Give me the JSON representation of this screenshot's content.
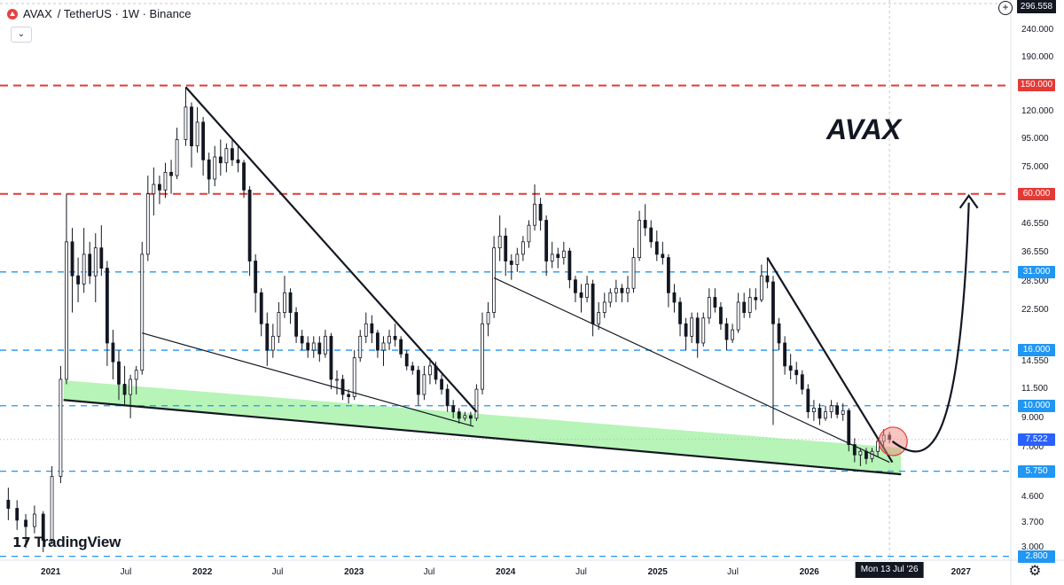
{
  "header": {
    "symbol": "AVAX",
    "pair": "/ TetherUS · 1W · Binance",
    "collapse_icon": "chevron-down-icon"
  },
  "brand": {
    "name": "TradingView",
    "logo_icon": "tradingview-logo-icon"
  },
  "annotation_text": "AVAX",
  "top_price_label": "296.558",
  "chart_data": {
    "type": "candlestick",
    "title": "",
    "xlabel": "",
    "ylabel": "",
    "scale": "log",
    "ylim": [
      2.75,
      300
    ],
    "xlim": [
      "2020-09-01",
      "2027-05-01"
    ],
    "y_ticks": [
      "240.000",
      "190.000",
      "120.000",
      "95.000",
      "75.000",
      "46.550",
      "36.550",
      "28.500",
      "22.500",
      "14.550",
      "11.500",
      "9.000",
      "7.000",
      "4.600",
      "3.700",
      "3.000"
    ],
    "x_ticks": [
      {
        "label": "2021",
        "date": "2021-01-01",
        "bold": true
      },
      {
        "label": "Jul",
        "date": "2021-07-01",
        "bold": false
      },
      {
        "label": "2022",
        "date": "2022-01-01",
        "bold": true
      },
      {
        "label": "Jul",
        "date": "2022-07-01",
        "bold": false
      },
      {
        "label": "2023",
        "date": "2023-01-01",
        "bold": true
      },
      {
        "label": "Jul",
        "date": "2023-07-01",
        "bold": false
      },
      {
        "label": "2024",
        "date": "2024-01-01",
        "bold": true
      },
      {
        "label": "Jul",
        "date": "2024-07-01",
        "bold": false
      },
      {
        "label": "2025",
        "date": "2025-01-01",
        "bold": true
      },
      {
        "label": "Jul",
        "date": "2025-07-01",
        "bold": false
      },
      {
        "label": "2026",
        "date": "2026-01-01",
        "bold": true
      },
      {
        "label": "2027",
        "date": "2027-01-01",
        "bold": true
      }
    ],
    "crosshair_date_label": "Mon 13 Jul '26",
    "crosshair_date": "2026-07-13",
    "price_levels": [
      {
        "label": "150.000",
        "value": 150,
        "style": "red-dashed",
        "color": "#e53935"
      },
      {
        "label": "60.000",
        "value": 60,
        "style": "red-dashed",
        "color": "#e53935"
      },
      {
        "label": "31.000",
        "value": 31,
        "style": "blue-dashed",
        "color": "#2196f3"
      },
      {
        "label": "16.000",
        "value": 16,
        "style": "blue-dashed",
        "color": "#2196f3"
      },
      {
        "label": "10.000",
        "value": 10,
        "style": "blue-dashed",
        "color": "#2196f3"
      },
      {
        "label": "5.750",
        "value": 5.75,
        "style": "blue-dashed",
        "color": "#2196f3"
      },
      {
        "label": "2.800",
        "value": 2.8,
        "style": "blue-dashed",
        "color": "#2196f3"
      }
    ],
    "current_price": {
      "label": "7.522",
      "value": 7.522,
      "color": "#2962ff"
    },
    "candles": [
      [
        "2020-09-21",
        4.5,
        5.0,
        3.8,
        4.2
      ],
      [
        "2020-10-12",
        4.2,
        4.5,
        3.5,
        3.8
      ],
      [
        "2020-11-02",
        3.8,
        4.0,
        3.0,
        3.6
      ],
      [
        "2020-11-23",
        3.6,
        4.3,
        3.4,
        4.0
      ],
      [
        "2020-12-14",
        4.0,
        4.1,
        2.9,
        3.2
      ],
      [
        "2021-01-04",
        3.2,
        6.0,
        3.1,
        5.5
      ],
      [
        "2021-01-25",
        5.5,
        14.0,
        5.2,
        12.5
      ],
      [
        "2021-02-08",
        12.5,
        60.0,
        12.0,
        40.0
      ],
      [
        "2021-02-22",
        40.0,
        45.0,
        22.0,
        30.0
      ],
      [
        "2021-03-08",
        30.0,
        35.0,
        24.0,
        28.0
      ],
      [
        "2021-03-22",
        28.0,
        45.0,
        26.0,
        36.0
      ],
      [
        "2021-04-05",
        36.0,
        40.0,
        28.0,
        30.0
      ],
      [
        "2021-04-19",
        30.0,
        43.0,
        24.0,
        38.0
      ],
      [
        "2021-05-03",
        38.0,
        46.0,
        30.0,
        32.0
      ],
      [
        "2021-05-17",
        32.0,
        34.0,
        14.0,
        17.0
      ],
      [
        "2021-05-31",
        17.0,
        19.0,
        12.5,
        14.5
      ],
      [
        "2021-06-14",
        14.5,
        16.0,
        10.5,
        12.0
      ],
      [
        "2021-06-28",
        12.0,
        14.0,
        10.0,
        11.0
      ],
      [
        "2021-07-12",
        11.0,
        13.0,
        9.0,
        12.5
      ],
      [
        "2021-07-26",
        12.5,
        14.0,
        11.0,
        13.5
      ],
      [
        "2021-08-09",
        13.5,
        40.0,
        13.0,
        36.0
      ],
      [
        "2021-08-23",
        36.0,
        70.0,
        34.0,
        60.0
      ],
      [
        "2021-09-06",
        60.0,
        75.0,
        50.0,
        65.0
      ],
      [
        "2021-09-20",
        65.0,
        70.0,
        55.0,
        62.0
      ],
      [
        "2021-10-04",
        62.0,
        78.0,
        58.0,
        72.0
      ],
      [
        "2021-10-18",
        72.0,
        80.0,
        60.0,
        70.0
      ],
      [
        "2021-11-01",
        70.0,
        105.0,
        68.0,
        95.0
      ],
      [
        "2021-11-22",
        95.0,
        148.0,
        90.0,
        125.0
      ],
      [
        "2021-12-06",
        125.0,
        130.0,
        75.0,
        90.0
      ],
      [
        "2021-12-20",
        90.0,
        125.0,
        85.0,
        110.0
      ],
      [
        "2022-01-03",
        110.0,
        115.0,
        70.0,
        80.0
      ],
      [
        "2022-01-17",
        80.0,
        85.0,
        60.0,
        68.0
      ],
      [
        "2022-01-31",
        68.0,
        90.0,
        64.0,
        82.0
      ],
      [
        "2022-02-14",
        82.0,
        95.0,
        70.0,
        78.0
      ],
      [
        "2022-02-28",
        78.0,
        92.0,
        72.0,
        88.0
      ],
      [
        "2022-03-14",
        88.0,
        96.0,
        76.0,
        80.0
      ],
      [
        "2022-03-28",
        80.0,
        90.0,
        72.0,
        78.0
      ],
      [
        "2022-04-11",
        78.0,
        80.0,
        58.0,
        62.0
      ],
      [
        "2022-04-25",
        62.0,
        64.0,
        30.0,
        34.0
      ],
      [
        "2022-05-09",
        34.0,
        36.0,
        22.0,
        26.0
      ],
      [
        "2022-05-23",
        26.0,
        27.0,
        18.0,
        20.0
      ],
      [
        "2022-06-06",
        20.0,
        22.0,
        14.0,
        16.0
      ],
      [
        "2022-06-20",
        16.0,
        20.0,
        15.0,
        18.0
      ],
      [
        "2022-07-04",
        18.0,
        24.0,
        17.0,
        22.0
      ],
      [
        "2022-07-18",
        22.0,
        30.0,
        21.0,
        26.0
      ],
      [
        "2022-08-01",
        26.0,
        27.0,
        20.0,
        22.0
      ],
      [
        "2022-08-15",
        22.0,
        23.0,
        17.0,
        18.0
      ],
      [
        "2022-08-29",
        18.0,
        19.0,
        16.0,
        17.0
      ],
      [
        "2022-09-12",
        17.0,
        18.0,
        15.0,
        16.0
      ],
      [
        "2022-09-26",
        16.0,
        18.0,
        15.0,
        17.0
      ],
      [
        "2022-10-10",
        17.0,
        18.0,
        14.5,
        15.5
      ],
      [
        "2022-10-24",
        15.5,
        19.0,
        15.0,
        18.0
      ],
      [
        "2022-11-07",
        18.0,
        18.5,
        11.5,
        12.5
      ],
      [
        "2022-11-21",
        12.5,
        13.5,
        11.0,
        12.5
      ],
      [
        "2022-12-05",
        12.5,
        13.0,
        10.5,
        11.0
      ],
      [
        "2022-12-19",
        11.0,
        11.5,
        10.2,
        10.8
      ],
      [
        "2023-01-02",
        10.8,
        16.0,
        10.5,
        15.0
      ],
      [
        "2023-01-16",
        15.0,
        19.0,
        14.5,
        18.0
      ],
      [
        "2023-01-30",
        18.0,
        22.0,
        17.0,
        20.0
      ],
      [
        "2023-02-13",
        20.0,
        21.5,
        17.0,
        18.5
      ],
      [
        "2023-02-27",
        18.5,
        19.0,
        15.0,
        16.0
      ],
      [
        "2023-03-13",
        16.0,
        18.0,
        14.0,
        17.0
      ],
      [
        "2023-03-27",
        17.0,
        19.0,
        16.0,
        18.0
      ],
      [
        "2023-04-10",
        18.0,
        20.0,
        16.5,
        17.5
      ],
      [
        "2023-04-24",
        17.5,
        18.0,
        15.0,
        15.5
      ],
      [
        "2023-05-08",
        15.5,
        16.0,
        13.5,
        14.0
      ],
      [
        "2023-05-22",
        14.0,
        14.5,
        13.0,
        13.5
      ],
      [
        "2023-06-05",
        13.5,
        14.0,
        10.0,
        11.0
      ],
      [
        "2023-06-19",
        11.0,
        14.0,
        10.5,
        13.0
      ],
      [
        "2023-07-03",
        13.0,
        15.0,
        12.0,
        14.0
      ],
      [
        "2023-07-17",
        14.0,
        14.5,
        12.0,
        12.5
      ],
      [
        "2023-07-31",
        12.5,
        13.0,
        11.0,
        11.5
      ],
      [
        "2023-08-14",
        11.5,
        12.0,
        9.5,
        10.0
      ],
      [
        "2023-08-28",
        10.0,
        10.5,
        9.0,
        9.5
      ],
      [
        "2023-09-11",
        9.5,
        9.8,
        8.6,
        9.0
      ],
      [
        "2023-09-25",
        9.0,
        9.5,
        8.8,
        9.2
      ],
      [
        "2023-10-09",
        9.2,
        9.5,
        8.5,
        9.0
      ],
      [
        "2023-10-23",
        9.0,
        12.0,
        8.8,
        11.5
      ],
      [
        "2023-11-06",
        11.5,
        22.0,
        11.0,
        20.0
      ],
      [
        "2023-11-20",
        20.0,
        24.0,
        18.0,
        22.0
      ],
      [
        "2023-12-04",
        22.0,
        42.0,
        21.0,
        38.0
      ],
      [
        "2023-12-18",
        38.0,
        50.0,
        34.0,
        42.0
      ],
      [
        "2024-01-01",
        42.0,
        45.0,
        30.0,
        34.0
      ],
      [
        "2024-01-15",
        34.0,
        36.0,
        29.0,
        33.0
      ],
      [
        "2024-01-29",
        33.0,
        38.0,
        31.0,
        36.0
      ],
      [
        "2024-02-12",
        36.0,
        42.0,
        34.0,
        40.0
      ],
      [
        "2024-02-26",
        40.0,
        48.0,
        38.0,
        46.0
      ],
      [
        "2024-03-11",
        46.0,
        65.0,
        44.0,
        55.0
      ],
      [
        "2024-03-25",
        55.0,
        58.0,
        44.0,
        48.0
      ],
      [
        "2024-04-08",
        48.0,
        50.0,
        30.0,
        34.0
      ],
      [
        "2024-04-22",
        34.0,
        40.0,
        32.0,
        36.0
      ],
      [
        "2024-05-06",
        36.0,
        38.0,
        32.0,
        35.0
      ],
      [
        "2024-05-20",
        35.0,
        40.0,
        33.0,
        37.0
      ],
      [
        "2024-06-03",
        37.0,
        38.0,
        27.0,
        29.0
      ],
      [
        "2024-06-17",
        29.0,
        30.0,
        24.0,
        26.0
      ],
      [
        "2024-07-01",
        26.0,
        28.0,
        22.0,
        25.0
      ],
      [
        "2024-07-15",
        25.0,
        30.0,
        24.0,
        28.0
      ],
      [
        "2024-07-29",
        28.0,
        29.0,
        18.0,
        20.0
      ],
      [
        "2024-08-12",
        20.0,
        24.0,
        19.0,
        22.0
      ],
      [
        "2024-08-26",
        22.0,
        26.0,
        21.0,
        24.0
      ],
      [
        "2024-09-09",
        24.0,
        27.0,
        23.0,
        26.0
      ],
      [
        "2024-09-23",
        26.0,
        29.0,
        24.0,
        27.0
      ],
      [
        "2024-10-07",
        27.0,
        28.0,
        24.0,
        26.0
      ],
      [
        "2024-10-21",
        26.0,
        30.0,
        24.0,
        27.0
      ],
      [
        "2024-11-04",
        27.0,
        38.0,
        26.0,
        35.0
      ],
      [
        "2024-11-18",
        35.0,
        52.0,
        34.0,
        48.0
      ],
      [
        "2024-12-02",
        48.0,
        55.0,
        42.0,
        45.0
      ],
      [
        "2024-12-16",
        45.0,
        48.0,
        38.0,
        40.0
      ],
      [
        "2024-12-30",
        40.0,
        44.0,
        34.0,
        36.0
      ],
      [
        "2025-01-13",
        36.0,
        40.0,
        33.0,
        35.0
      ],
      [
        "2025-01-27",
        35.0,
        36.0,
        23.0,
        26.0
      ],
      [
        "2025-02-10",
        26.0,
        28.0,
        22.0,
        24.0
      ],
      [
        "2025-02-24",
        24.0,
        25.0,
        18.0,
        20.0
      ],
      [
        "2025-03-10",
        20.0,
        21.0,
        16.0,
        18.0
      ],
      [
        "2025-03-24",
        18.0,
        22.0,
        17.0,
        21.0
      ],
      [
        "2025-04-07",
        21.0,
        22.0,
        15.0,
        17.0
      ],
      [
        "2025-04-21",
        17.0,
        22.0,
        16.5,
        21.0
      ],
      [
        "2025-05-05",
        21.0,
        27.0,
        20.0,
        25.0
      ],
      [
        "2025-05-19",
        25.0,
        27.0,
        22.0,
        23.0
      ],
      [
        "2025-06-02",
        23.0,
        24.0,
        19.0,
        20.0
      ],
      [
        "2025-06-16",
        20.0,
        21.0,
        16.0,
        17.5
      ],
      [
        "2025-06-30",
        17.5,
        20.0,
        17.0,
        19.0
      ],
      [
        "2025-07-14",
        19.0,
        26.0,
        18.5,
        24.0
      ],
      [
        "2025-07-28",
        24.0,
        26.0,
        21.0,
        22.0
      ],
      [
        "2025-08-11",
        22.0,
        27.0,
        21.0,
        25.0
      ],
      [
        "2025-08-25",
        25.0,
        27.0,
        22.5,
        24.5
      ],
      [
        "2025-09-08",
        24.5,
        33.0,
        24.0,
        30.0
      ],
      [
        "2025-09-22",
        30.0,
        35.0,
        27.0,
        28.5
      ],
      [
        "2025-10-06",
        28.5,
        30.0,
        8.5,
        20.0
      ],
      [
        "2025-10-20",
        20.0,
        21.0,
        16.0,
        17.0
      ],
      [
        "2025-11-03",
        17.0,
        18.0,
        13.0,
        14.0
      ],
      [
        "2025-11-17",
        14.0,
        15.5,
        12.5,
        13.5
      ],
      [
        "2025-12-01",
        13.5,
        14.5,
        12.0,
        13.0
      ],
      [
        "2025-12-15",
        13.0,
        13.5,
        11.0,
        11.5
      ],
      [
        "2025-12-29",
        11.5,
        12.0,
        9.0,
        9.5
      ],
      [
        "2026-01-12",
        9.5,
        10.5,
        8.8,
        9.8
      ],
      [
        "2026-01-26",
        9.8,
        10.2,
        8.5,
        9.0
      ],
      [
        "2026-02-09",
        9.0,
        10.0,
        8.8,
        9.5
      ],
      [
        "2026-02-23",
        9.5,
        10.5,
        9.0,
        10.0
      ],
      [
        "2026-03-09",
        10.0,
        10.3,
        9.0,
        9.3
      ],
      [
        "2026-03-23",
        9.3,
        10.2,
        8.8,
        9.6
      ],
      [
        "2026-04-06",
        9.6,
        9.8,
        6.8,
        7.2
      ],
      [
        "2026-04-20",
        7.2,
        7.6,
        6.2,
        6.6
      ],
      [
        "2026-05-04",
        6.6,
        7.0,
        6.0,
        6.8
      ],
      [
        "2026-05-18",
        6.8,
        7.0,
        6.1,
        6.4
      ],
      [
        "2026-06-01",
        6.4,
        7.0,
        6.2,
        6.8
      ],
      [
        "2026-06-15",
        6.8,
        7.6,
        6.5,
        7.4
      ],
      [
        "2026-06-29",
        7.4,
        8.2,
        7.0,
        7.8
      ],
      [
        "2026-07-13",
        7.8,
        8.0,
        7.3,
        7.522
      ]
    ],
    "trendlines": [
      {
        "name": "support-base",
        "points": [
          [
            "2021-02-01",
            10.5
          ],
          [
            "2026-08-10",
            5.6
          ]
        ]
      },
      {
        "name": "resistance-2021",
        "points": [
          [
            "2021-11-22",
            148
          ],
          [
            "2023-10-23",
            9.5
          ]
        ]
      },
      {
        "name": "support-2021",
        "points": [
          [
            "2021-08-09",
            18.5
          ],
          [
            "2023-10-16",
            8.4
          ]
        ]
      },
      {
        "name": "support-2024",
        "points": [
          [
            "2023-12-04",
            29.5
          ],
          [
            "2026-07-13",
            6.2
          ]
        ]
      },
      {
        "name": "resistance-2025",
        "points": [
          [
            "2025-09-22",
            35
          ],
          [
            "2026-07-20",
            6.2
          ]
        ]
      }
    ],
    "zone": {
      "name": "accumulation-zone",
      "points": [
        [
          "2021-02-01",
          12.4
        ],
        [
          "2026-08-10",
          7.0
        ],
        [
          "2026-08-10",
          5.6
        ],
        [
          "2021-02-01",
          10.5
        ]
      ],
      "color": "#90ee90"
    },
    "marker_circle": {
      "date": "2026-07-13",
      "value": 7.4
    },
    "projection_arrow": {
      "from": [
        "2026-07-20",
        7.4
      ],
      "to": [
        "2027-01-20",
        60
      ],
      "arrow_icon": "arrowhead-icon"
    }
  }
}
